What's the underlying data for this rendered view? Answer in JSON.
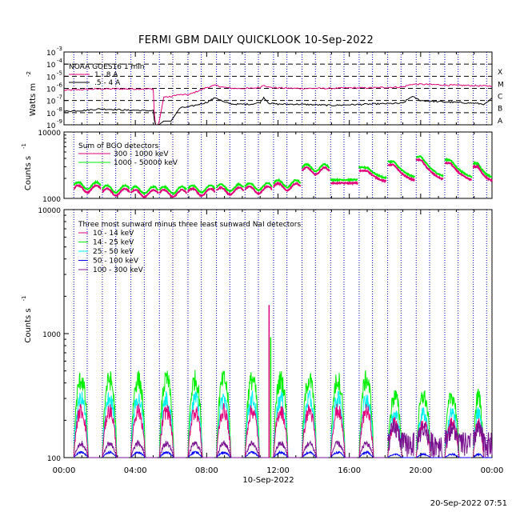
{
  "title": "FERMI GBM DAILY QUICKLOOK   10-Sep-2022",
  "footer_timestamp": "20-Sep-2022 07:51",
  "colors": {
    "magenta": "#e0007a",
    "green": "#00ee00",
    "cyan": "#00f0f0",
    "blue": "#0000ff",
    "purple": "#7a1290",
    "black": "#000000",
    "grid_dotted": "#0000cc"
  },
  "chart_data": [
    {
      "id": "goes",
      "type": "line",
      "ylabel": "Watts m",
      "ylabel_exponent": "-2",
      "yscale": "log",
      "ylim": [
        1e-09,
        0.001
      ],
      "y_tick_labels": [
        "10",
        "10",
        "10",
        "10",
        "10",
        "10",
        "10"
      ],
      "y_tick_exponents": [
        "-3",
        "-4",
        "-5",
        "-6",
        "-7",
        "-8",
        "-9"
      ],
      "y_tick_values": [
        0.001,
        0.0001,
        1e-05,
        1e-06,
        1e-07,
        1e-08,
        1e-09
      ],
      "flare_classes": [
        {
          "label": "X",
          "value": 0.0001
        },
        {
          "label": "M",
          "value": 1e-05
        },
        {
          "label": "C",
          "value": 1e-06
        },
        {
          "label": "B",
          "value": 1e-07
        },
        {
          "label": "A",
          "value": 1e-08
        }
      ],
      "legend_title": "NOAA GOES16 1 min",
      "series": [
        {
          "name": "1 - 8 A",
          "color": "#e0007a",
          "x_hours": [
            0,
            1,
            2,
            3,
            3.5,
            4,
            4.5,
            5,
            5.1,
            5.3,
            5.6,
            6,
            6.3,
            7,
            8,
            8.5,
            9,
            9.5,
            10,
            10.5,
            11,
            11.2,
            11.5,
            12,
            13,
            14,
            15,
            16,
            17,
            18,
            19,
            19.5,
            20,
            21,
            22,
            23,
            23.6,
            24
          ],
          "values": [
            7e-07,
            8e-07,
            9e-07,
            9e-07,
            9e-07,
            9e-07,
            9e-07,
            9e-07,
            1e-09,
            1e-09,
            2e-07,
            2e-07,
            3e-07,
            3e-07,
            1.2e-06,
            1.8e-06,
            1.2e-06,
            1e-06,
            1e-06,
            1e-06,
            1.2e-06,
            2e-06,
            1.2e-06,
            1.1e-06,
            1e-06,
            1e-06,
            1e-06,
            1.1e-06,
            1.1e-06,
            1.2e-06,
            1.3e-06,
            2.2e-06,
            2.2e-06,
            2e-06,
            1.8e-06,
            1.7e-06,
            1.6e-06,
            1.6e-06
          ]
        },
        {
          "name": ".5 - 4 A",
          "color": "#000000",
          "x_hours": [
            0,
            1,
            2,
            3,
            3.5,
            4,
            4.5,
            5,
            5.1,
            5.3,
            5.6,
            6,
            6.5,
            7,
            8,
            8.5,
            9,
            9.5,
            10,
            10.5,
            11,
            11.2,
            11.5,
            12,
            13,
            14,
            15,
            16,
            17,
            18,
            19,
            19.5,
            20,
            21,
            22,
            23,
            23.6,
            24
          ],
          "values": [
            1.3e-08,
            1.5e-08,
            2e-08,
            1.8e-08,
            1.6e-08,
            1.6e-08,
            1.5e-08,
            1.5e-08,
            1e-09,
            1e-09,
            2e-09,
            2e-09,
            2.5e-08,
            3e-08,
            7e-08,
            1.8e-07,
            7e-08,
            5e-08,
            5e-08,
            5e-08,
            7e-08,
            1.8e-07,
            6e-08,
            5e-08,
            5e-08,
            4.5e-08,
            4e-08,
            4.5e-08,
            5e-08,
            5.5e-08,
            6e-08,
            2.2e-07,
            1e-07,
            8e-08,
            7e-08,
            6e-08,
            5e-08,
            1.5e-07
          ]
        }
      ]
    },
    {
      "id": "bgo",
      "type": "line",
      "ylabel": "Counts s",
      "ylabel_exponent": "-1",
      "yscale": "log",
      "ylim": [
        1000,
        10000
      ],
      "y_tick_labels": [
        "10000",
        "1000"
      ],
      "y_tick_values": [
        10000,
        1000
      ],
      "legend_title": "Sum of BGO detectors",
      "orbit_period_h": 1.6,
      "series": [
        {
          "name": "300 - 1000 keV",
          "color": "#e0007a",
          "base_values": [
            1400,
            1300,
            1250,
            1250,
            1200,
            1200,
            1200,
            1200,
            1250,
            1250,
            1300,
            1300,
            1350,
            1400,
            1500,
            1700,
            2600,
            3000,
            3400,
            3800,
            3600,
            3200,
            2800
          ],
          "segment_start_hours": [
            0.55,
            2.15,
            3.75,
            5.35,
            6.95,
            8.55,
            10.15,
            11.75,
            13.35,
            14.95,
            16.55,
            18.15,
            19.75,
            21.35,
            22.95
          ]
        },
        {
          "name": "1000 - 50000 keV",
          "color": "#00ee00"
        }
      ]
    },
    {
      "id": "nai",
      "type": "line",
      "ylabel": "Counts s",
      "ylabel_exponent": "-1",
      "yscale": "log",
      "ylim": [
        100,
        10000
      ],
      "y_tick_labels": [
        "10000",
        "1000",
        "100"
      ],
      "y_tick_values": [
        10000,
        1000,
        100
      ],
      "legend_title": "Three most sunward minus three least sunward NaI detectors",
      "series": [
        {
          "name": "10 - 14 keV",
          "color": "#e0007a",
          "peak": 240
        },
        {
          "name": "14 - 25 keV",
          "color": "#00ee00",
          "peak": 430
        },
        {
          "name": "25 - 50 keV",
          "color": "#00f0f0",
          "peak": 300
        },
        {
          "name": "50 - 100 keV",
          "color": "#0000ff",
          "peak": 110
        },
        {
          "name": "100 - 300 keV",
          "color": "#7a1290",
          "peak": 130
        }
      ],
      "spike": {
        "x_hour": 11.5,
        "value": 1700
      }
    }
  ],
  "x_axis": {
    "ticks_hours": [
      0,
      4,
      8,
      12,
      16,
      20,
      24
    ],
    "tick_labels": [
      "00:00",
      "04:00",
      "08:00",
      "12:00",
      "16:00",
      "20:00",
      "00:00"
    ],
    "label": "10-Sep-2022",
    "dotted_lines_hours": [
      0.55,
      1.3,
      2.15,
      2.9,
      3.75,
      4.5,
      5.35,
      6.1,
      6.95,
      7.7,
      8.55,
      9.3,
      10.15,
      10.9,
      11.75,
      12.5,
      13.35,
      14.1,
      14.95,
      15.7,
      16.55,
      17.3,
      18.15,
      18.9,
      19.75,
      20.5,
      21.35,
      22.1,
      22.95,
      23.7
    ]
  }
}
